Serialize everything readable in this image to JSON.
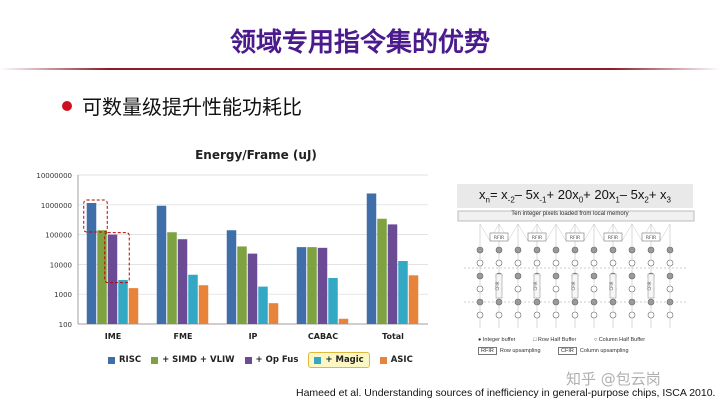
{
  "slide": {
    "title": "领域专用指令集的优势",
    "bullet": "可数量级提升性能功耗比",
    "citation": "Hameed et al. Understanding sources of inefficiency in general-purpose chips, ISCA 2010.",
    "watermark": "知乎 @包云岗"
  },
  "colors": {
    "title": "#4b1a8c",
    "bullet": "#d01020",
    "highlight_box": "#c00000"
  },
  "chart_data": {
    "type": "bar",
    "title": "Energy/Frame (uJ)",
    "categories": [
      "IME",
      "FME",
      "IP",
      "CABAC",
      "Total"
    ],
    "y_scale": "log",
    "ylim": [
      100,
      10000000
    ],
    "y_ticks": [
      "100",
      "1000",
      "10000",
      "100000",
      "1000000",
      "10000000"
    ],
    "legend_position": "bottom",
    "series": [
      {
        "name": "RISC",
        "color": "#3f6ea8",
        "values": [
          1150000,
          930000,
          140000,
          38000,
          2400000
        ]
      },
      {
        "name": "+ SIMD + VLIW",
        "color": "#7ea240",
        "values": [
          140000,
          120000,
          40000,
          38000,
          340000
        ]
      },
      {
        "name": "+ Op Fus",
        "color": "#6b4a96",
        "values": [
          100000,
          70000,
          23000,
          36000,
          220000
        ]
      },
      {
        "name": "+ Magic",
        "color": "#33a8c4",
        "values": [
          3000,
          4500,
          1800,
          3500,
          13000
        ]
      },
      {
        "name": "ASIC",
        "color": "#e8833a",
        "values": [
          1600,
          2000,
          500,
          150,
          4300
        ]
      }
    ],
    "highlighted_legend": "+ Magic"
  },
  "diagram": {
    "formula": {
      "lhs": "x",
      "lhs_sub": "n",
      "terms": [
        {
          "op": " = ",
          "coef": "",
          "var": "x",
          "sub": "-2"
        },
        {
          "op": " – ",
          "coef": "5",
          "var": "x",
          "sub": "-1"
        },
        {
          "op": " + ",
          "coef": "20",
          "var": "x",
          "sub": "0"
        },
        {
          "op": " + ",
          "coef": "20",
          "var": "x",
          "sub": "1"
        },
        {
          "op": " – ",
          "coef": "5",
          "var": "x",
          "sub": "2"
        },
        {
          "op": " + ",
          "coef": "",
          "var": "x",
          "sub": "3"
        }
      ]
    },
    "caption": "Ten integer pixels loaded from local memory",
    "box_label_r": "RFIR",
    "box_label_c": "CFIR",
    "legend": {
      "integer_buffer": "Integer buffer",
      "row_half_buffer": "Row Half Buffer",
      "column_half_buffer": "Column Half Buffer",
      "rfir_label": "RFIR",
      "rfir_text": "Row upsampling",
      "cfir_label": "CFIR",
      "cfir_text": "Column upsampling"
    }
  }
}
